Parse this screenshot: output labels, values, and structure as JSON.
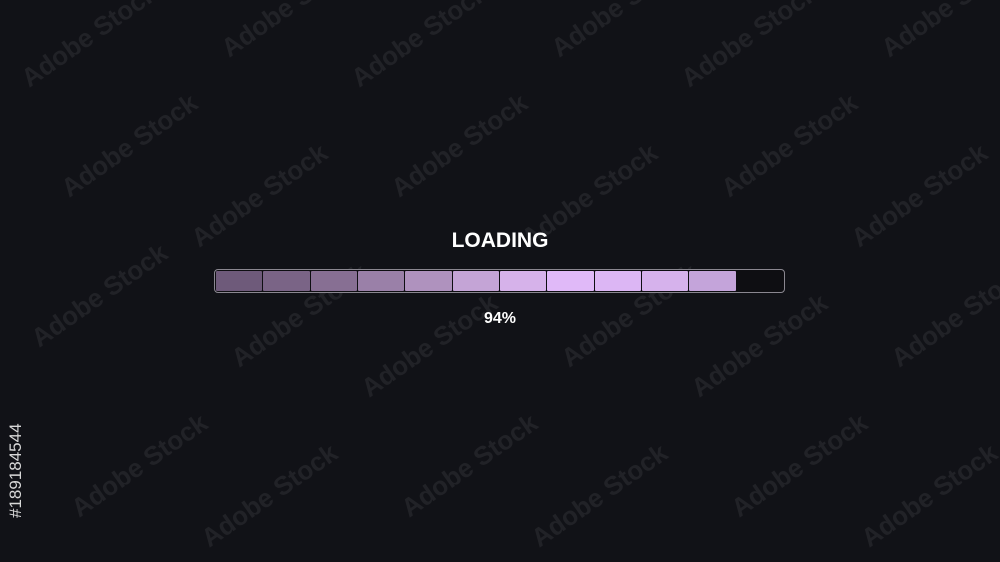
{
  "title": "LOADING",
  "progress": {
    "percent_label": "94%",
    "filled_segments": 11,
    "total_segments": 12,
    "segment_colors": [
      "#6e5a7a",
      "#7a6486",
      "#876f93",
      "#9a80a8",
      "#af92be",
      "#c4a4d6",
      "#d6b2ea",
      "#e0b9f8",
      "#dcb6f4",
      "#d6b2ec",
      "#c4a4da"
    ],
    "empty_color": "#0e0e12"
  },
  "watermark": {
    "text": "Adobe Stock",
    "id": "#189184544"
  }
}
